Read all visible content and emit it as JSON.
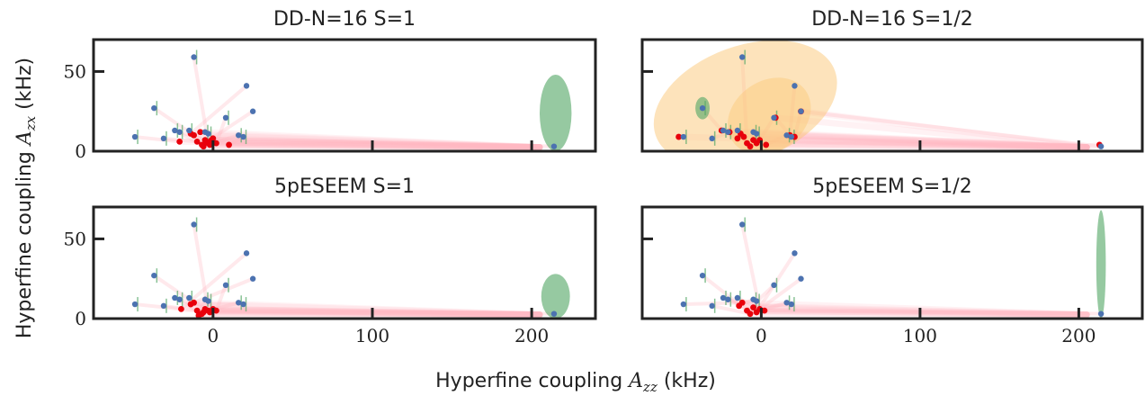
{
  "figure": {
    "ylabel_prefix": "Hyperfine coupling ",
    "ylabel_symbol": "A",
    "ylabel_sub": "zx",
    "ylabel_suffix": " (kHz)",
    "xlabel_prefix": "Hyperfine coupling ",
    "xlabel_symbol": "A",
    "xlabel_sub": "zz",
    "xlabel_suffix": " (kHz)",
    "colors": {
      "true_points": "#4c72b0",
      "estimated_points": "#e8000b",
      "good_region": "#55a868",
      "uncertain_region": "#fbc777",
      "spread_region": "#ffb6c1"
    }
  },
  "chart_data": [
    {
      "type": "scatter",
      "title": "DD-N=16 S=1",
      "xlim": [
        -75,
        240
      ],
      "ylim": [
        0,
        70
      ],
      "xticks": [
        0,
        100,
        200
      ],
      "yticks": [
        0,
        50
      ],
      "show_xtick_labels": false,
      "show_ytick_labels": true,
      "series": [
        {
          "points": [
            [
              -49,
              9
            ],
            [
              -37,
              27
            ],
            [
              -31,
              8
            ],
            [
              -24,
              13
            ],
            [
              -21,
              12
            ],
            [
              -12,
              59
            ],
            [
              -15,
              13
            ],
            [
              -5,
              12
            ],
            [
              -3,
              11
            ],
            [
              8,
              21
            ],
            [
              16,
              10
            ],
            [
              19,
              9
            ],
            [
              21,
              41
            ],
            [
              25,
              25
            ],
            [
              214,
              3
            ]
          ]
        },
        {
          "points": [
            [
              -21,
              6
            ],
            [
              -12,
              10
            ],
            [
              -10,
              6
            ],
            [
              -7,
              4
            ],
            [
              -5,
              7
            ],
            [
              -3,
              5
            ],
            [
              -2,
              4
            ],
            [
              -8,
              12
            ],
            [
              -1,
              7
            ],
            [
              2,
              5
            ],
            [
              -6,
              3
            ],
            [
              10,
              4
            ],
            [
              -14,
              11
            ],
            [
              -4,
              6
            ],
            [
              0,
              8
            ]
          ]
        }
      ],
      "regions": [
        {
          "kind": "good",
          "center": [
            215,
            24
          ],
          "width": 20,
          "height": 48
        }
      ]
    },
    {
      "type": "scatter",
      "title": "DD-N=16 S=1/2",
      "xlim": [
        -75,
        240
      ],
      "ylim": [
        0,
        70
      ],
      "xticks": [
        0,
        100,
        200
      ],
      "yticks": [
        0,
        50
      ],
      "show_xtick_labels": false,
      "show_ytick_labels": false,
      "series": [
        {
          "points": [
            [
              -49,
              9
            ],
            [
              -37,
              27
            ],
            [
              -31,
              8
            ],
            [
              -24,
              13
            ],
            [
              -21,
              12
            ],
            [
              -12,
              59
            ],
            [
              -15,
              13
            ],
            [
              -5,
              12
            ],
            [
              -3,
              11
            ],
            [
              8,
              21
            ],
            [
              16,
              10
            ],
            [
              19,
              9
            ],
            [
              21,
              41
            ],
            [
              25,
              25
            ],
            [
              214,
              3
            ]
          ]
        },
        {
          "points": [
            [
              -52,
              9
            ],
            [
              -25,
              13
            ],
            [
              -20,
              12
            ],
            [
              -15,
              8
            ],
            [
              -11,
              9
            ],
            [
              -9,
              5
            ],
            [
              -7,
              3
            ],
            [
              -5,
              7
            ],
            [
              -3,
              5
            ],
            [
              -1,
              7
            ],
            [
              3,
              4
            ],
            [
              9,
              21
            ],
            [
              18,
              10
            ],
            [
              21,
              9
            ],
            [
              25,
              25
            ],
            [
              213,
              4
            ],
            [
              -13,
              11
            ]
          ]
        }
      ],
      "regions": [
        {
          "kind": "good",
          "center": [
            -37,
            27
          ],
          "width": 9,
          "height": 14
        }
      ]
    },
    {
      "type": "scatter",
      "title": "5pESEEM S=1",
      "xlim": [
        -75,
        240
      ],
      "ylim": [
        0,
        70
      ],
      "xticks": [
        0,
        100,
        200
      ],
      "yticks": [
        0,
        50
      ],
      "show_xtick_labels": true,
      "show_ytick_labels": true,
      "series": [
        {
          "points": [
            [
              -49,
              9
            ],
            [
              -37,
              27
            ],
            [
              -31,
              8
            ],
            [
              -24,
              13
            ],
            [
              -21,
              12
            ],
            [
              -12,
              59
            ],
            [
              -15,
              13
            ],
            [
              -5,
              12
            ],
            [
              -3,
              11
            ],
            [
              8,
              21
            ],
            [
              16,
              10
            ],
            [
              19,
              9
            ],
            [
              21,
              41
            ],
            [
              25,
              25
            ],
            [
              214,
              3
            ]
          ]
        },
        {
          "points": [
            [
              -20,
              6
            ],
            [
              -12,
              10
            ],
            [
              -10,
              5
            ],
            [
              -7,
              3
            ],
            [
              -5,
              6
            ],
            [
              -3,
              5
            ],
            [
              -2,
              4
            ],
            [
              -9,
              2
            ],
            [
              0,
              6
            ],
            [
              2,
              5
            ],
            [
              -6,
              4
            ],
            [
              -14,
              9
            ]
          ]
        }
      ],
      "regions": [
        {
          "kind": "good",
          "center": [
            215,
            14
          ],
          "width": 18,
          "height": 28
        }
      ]
    },
    {
      "type": "scatter",
      "title": "5pESEEM S=1/2",
      "xlim": [
        -75,
        240
      ],
      "ylim": [
        0,
        70
      ],
      "xticks": [
        0,
        100,
        200
      ],
      "yticks": [
        0,
        50
      ],
      "show_xtick_labels": true,
      "show_ytick_labels": false,
      "series": [
        {
          "points": [
            [
              -49,
              9
            ],
            [
              -37,
              27
            ],
            [
              -31,
              8
            ],
            [
              -24,
              13
            ],
            [
              -21,
              12
            ],
            [
              -12,
              59
            ],
            [
              -15,
              13
            ],
            [
              -5,
              12
            ],
            [
              -3,
              11
            ],
            [
              8,
              21
            ],
            [
              16,
              10
            ],
            [
              19,
              9
            ],
            [
              21,
              41
            ],
            [
              25,
              25
            ],
            [
              214,
              3
            ]
          ]
        },
        {
          "points": [
            [
              -12,
              10
            ],
            [
              -9,
              5
            ],
            [
              -7,
              3
            ],
            [
              -5,
              7
            ],
            [
              -3,
              4
            ],
            [
              -1,
              6
            ],
            [
              2,
              5
            ],
            [
              -14,
              8
            ]
          ]
        }
      ],
      "regions": [
        {
          "kind": "good",
          "center": [
            214,
            34
          ],
          "width": 6,
          "height": 68
        }
      ]
    }
  ]
}
